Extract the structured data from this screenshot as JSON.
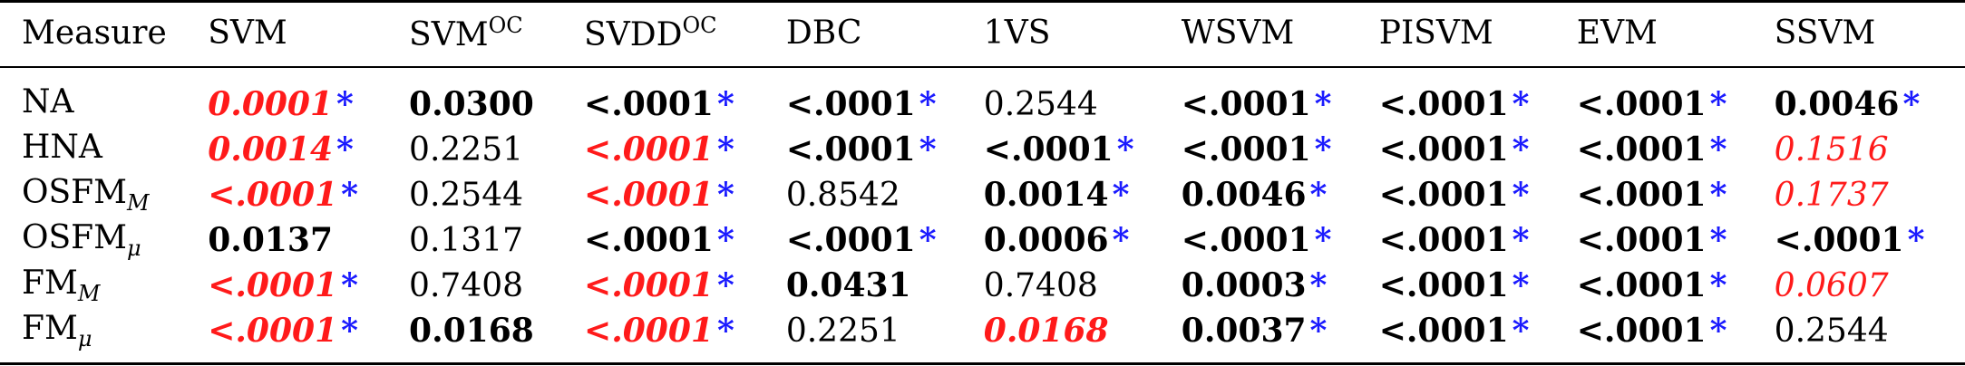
{
  "header": {
    "measure": "Measure",
    "svm": "SVM",
    "svmoc": {
      "base": "SVM",
      "sup": "OC"
    },
    "svddoc": {
      "base": "SVDD",
      "sup": "OC"
    },
    "dbc": "DBC",
    "ovs": "1VS",
    "wsvm": "WSVM",
    "pisvm": "PISVM",
    "evm": "EVM",
    "ssvm": "SSVM"
  },
  "rows": [
    {
      "label": {
        "base": "NA",
        "sub": ""
      },
      "cells": [
        {
          "value": "0.0001",
          "star": "*"
        },
        {
          "value": "0.0300",
          "star": ""
        },
        {
          "value": "<.0001",
          "star": "*"
        },
        {
          "value": "<.0001",
          "star": "*"
        },
        {
          "value": "0.2544",
          "star": ""
        },
        {
          "value": "<.0001",
          "star": "*"
        },
        {
          "value": "<.0001",
          "star": "*"
        },
        {
          "value": "<.0001",
          "star": "*"
        },
        {
          "value": "0.0046",
          "star": "*"
        }
      ]
    },
    {
      "label": {
        "base": "HNA",
        "sub": ""
      },
      "cells": [
        {
          "value": "0.0014",
          "star": "*"
        },
        {
          "value": "0.2251",
          "star": ""
        },
        {
          "value": "<.0001",
          "star": "*"
        },
        {
          "value": "<.0001",
          "star": "*"
        },
        {
          "value": "<.0001",
          "star": "*"
        },
        {
          "value": "<.0001",
          "star": "*"
        },
        {
          "value": "<.0001",
          "star": "*"
        },
        {
          "value": "<.0001",
          "star": "*"
        },
        {
          "value": "0.1516",
          "star": ""
        }
      ]
    },
    {
      "label": {
        "base": "OSFM",
        "sub": "M"
      },
      "cells": [
        {
          "value": "<.0001",
          "star": "*"
        },
        {
          "value": "0.2544",
          "star": ""
        },
        {
          "value": "<.0001",
          "star": "*"
        },
        {
          "value": "0.8542",
          "star": ""
        },
        {
          "value": "0.0014",
          "star": "*"
        },
        {
          "value": "0.0046",
          "star": "*"
        },
        {
          "value": "<.0001",
          "star": "*"
        },
        {
          "value": "<.0001",
          "star": "*"
        },
        {
          "value": "0.1737",
          "star": ""
        }
      ]
    },
    {
      "label": {
        "base": "OSFM",
        "sub": "μ"
      },
      "cells": [
        {
          "value": "0.0137",
          "star": ""
        },
        {
          "value": "0.1317",
          "star": ""
        },
        {
          "value": "<.0001",
          "star": "*"
        },
        {
          "value": "<.0001",
          "star": "*"
        },
        {
          "value": "0.0006",
          "star": "*"
        },
        {
          "value": "<.0001",
          "star": "*"
        },
        {
          "value": "<.0001",
          "star": "*"
        },
        {
          "value": "<.0001",
          "star": "*"
        },
        {
          "value": "<.0001",
          "star": "*"
        }
      ]
    },
    {
      "label": {
        "base": "FM",
        "sub": "M"
      },
      "cells": [
        {
          "value": "<.0001",
          "star": "*"
        },
        {
          "value": "0.7408",
          "star": ""
        },
        {
          "value": "<.0001",
          "star": "*"
        },
        {
          "value": "0.0431",
          "star": ""
        },
        {
          "value": "0.7408",
          "star": ""
        },
        {
          "value": "0.0003",
          "star": "*"
        },
        {
          "value": "<.0001",
          "star": "*"
        },
        {
          "value": "<.0001",
          "star": "*"
        },
        {
          "value": "0.0607",
          "star": ""
        }
      ]
    },
    {
      "label": {
        "base": "FM",
        "sub": "μ"
      },
      "cells": [
        {
          "value": "<.0001",
          "star": "*"
        },
        {
          "value": "0.0168",
          "star": ""
        },
        {
          "value": "<.0001",
          "star": "*"
        },
        {
          "value": "0.2251",
          "star": ""
        },
        {
          "value": "0.0168",
          "star": ""
        },
        {
          "value": "0.0037",
          "star": "*"
        },
        {
          "value": "<.0001",
          "star": "*"
        },
        {
          "value": "<.0001",
          "star": "*"
        },
        {
          "value": "0.2544",
          "star": ""
        }
      ]
    }
  ]
}
